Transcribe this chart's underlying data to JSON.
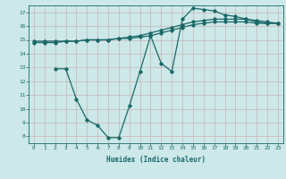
{
  "xlabel": "Humidex (Indice chaleur)",
  "bg_color": "#cce8e8",
  "grid_color": "#c0b0b0",
  "line_color": "#1a6868",
  "xlim": [
    -0.5,
    23.5
  ],
  "ylim": [
    7.5,
    17.5
  ],
  "yticks": [
    8,
    9,
    10,
    11,
    12,
    13,
    14,
    15,
    16,
    17
  ],
  "xticks": [
    0,
    1,
    2,
    3,
    4,
    5,
    6,
    7,
    8,
    9,
    10,
    11,
    12,
    13,
    14,
    15,
    16,
    17,
    18,
    19,
    20,
    21,
    22,
    23
  ],
  "line1_x": [
    0,
    1,
    2,
    3,
    4,
    5,
    6,
    7,
    8,
    9,
    10,
    11,
    12,
    13,
    14,
    15,
    16,
    17,
    18,
    19,
    20,
    21,
    22,
    23
  ],
  "line1_y": [
    14.8,
    14.8,
    14.8,
    14.9,
    14.9,
    15.0,
    15.0,
    15.0,
    15.1,
    15.1,
    15.2,
    15.3,
    15.5,
    15.7,
    15.9,
    16.1,
    16.2,
    16.3,
    16.3,
    16.3,
    16.3,
    16.2,
    16.2,
    16.2
  ],
  "line2_x": [
    0,
    1,
    2,
    3,
    4,
    5,
    6,
    7,
    8,
    9,
    10,
    11,
    12,
    13,
    14,
    15,
    16,
    17,
    18,
    19,
    20,
    21,
    22,
    23
  ],
  "line2_y": [
    14.9,
    14.9,
    14.9,
    14.9,
    14.9,
    15.0,
    15.0,
    15.0,
    15.1,
    15.2,
    15.3,
    15.5,
    15.7,
    15.9,
    16.1,
    16.3,
    16.4,
    16.5,
    16.5,
    16.5,
    16.5,
    16.4,
    16.3,
    16.2
  ],
  "line3_x": [
    2,
    3,
    4,
    5,
    6,
    7,
    8,
    9,
    10,
    11,
    12,
    13,
    14,
    15,
    16,
    17,
    18,
    19,
    20,
    21,
    22,
    23
  ],
  "line3_y": [
    12.9,
    12.9,
    10.7,
    9.2,
    8.8,
    7.9,
    7.9,
    10.2,
    12.7,
    15.3,
    13.3,
    12.7,
    16.5,
    17.3,
    17.2,
    17.1,
    16.8,
    16.7,
    16.5,
    16.3,
    16.2,
    16.2
  ]
}
